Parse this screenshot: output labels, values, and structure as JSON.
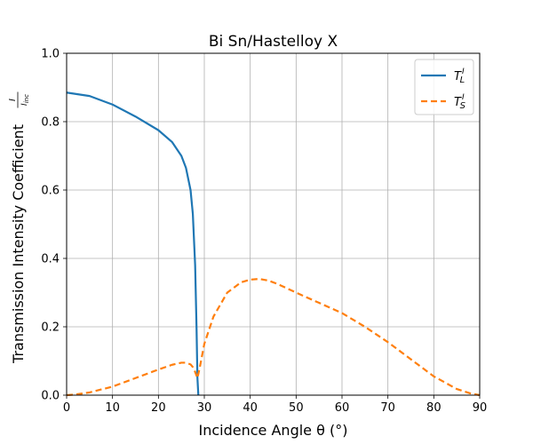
{
  "chart_data": {
    "type": "line",
    "title": "Bi Sn/Hastelloy X",
    "xlabel": "Incidence Angle θ (°)",
    "ylabel": "Transmission Intensity Coefficient I/I_inc",
    "xlim": [
      0,
      90
    ],
    "ylim": [
      0,
      1.0
    ],
    "xticks": [
      "0",
      "10",
      "20",
      "30",
      "40",
      "50",
      "60",
      "70",
      "80",
      "90"
    ],
    "yticks": [
      "0.0",
      "0.2",
      "0.4",
      "0.6",
      "0.8",
      "1.0"
    ],
    "grid": true,
    "legend_position": "top-right",
    "series": [
      {
        "name": "T_L^I",
        "color": "#1f77b4",
        "style": "solid",
        "x": [
          0,
          5,
          10,
          15,
          20,
          23,
          25,
          26,
          27,
          27.5,
          28,
          28.3,
          28.5,
          28.7
        ],
        "y": [
          0.885,
          0.875,
          0.85,
          0.815,
          0.775,
          0.74,
          0.7,
          0.665,
          0.6,
          0.53,
          0.38,
          0.2,
          0.05,
          0.0
        ]
      },
      {
        "name": "T_S^I",
        "color": "#ff7f0e",
        "style": "dashed",
        "x": [
          0,
          2,
          5,
          10,
          15,
          20,
          23,
          25,
          26,
          27,
          27.5,
          28,
          28.5,
          29,
          30,
          32,
          35,
          38,
          40,
          42,
          44,
          46,
          50,
          55,
          60,
          65,
          70,
          75,
          80,
          85,
          88,
          90
        ],
        "y": [
          0.0,
          0.002,
          0.008,
          0.025,
          0.05,
          0.075,
          0.089,
          0.095,
          0.095,
          0.09,
          0.082,
          0.068,
          0.05,
          0.08,
          0.15,
          0.23,
          0.3,
          0.33,
          0.338,
          0.34,
          0.335,
          0.325,
          0.3,
          0.27,
          0.24,
          0.2,
          0.155,
          0.105,
          0.055,
          0.018,
          0.005,
          0.0
        ]
      }
    ]
  }
}
